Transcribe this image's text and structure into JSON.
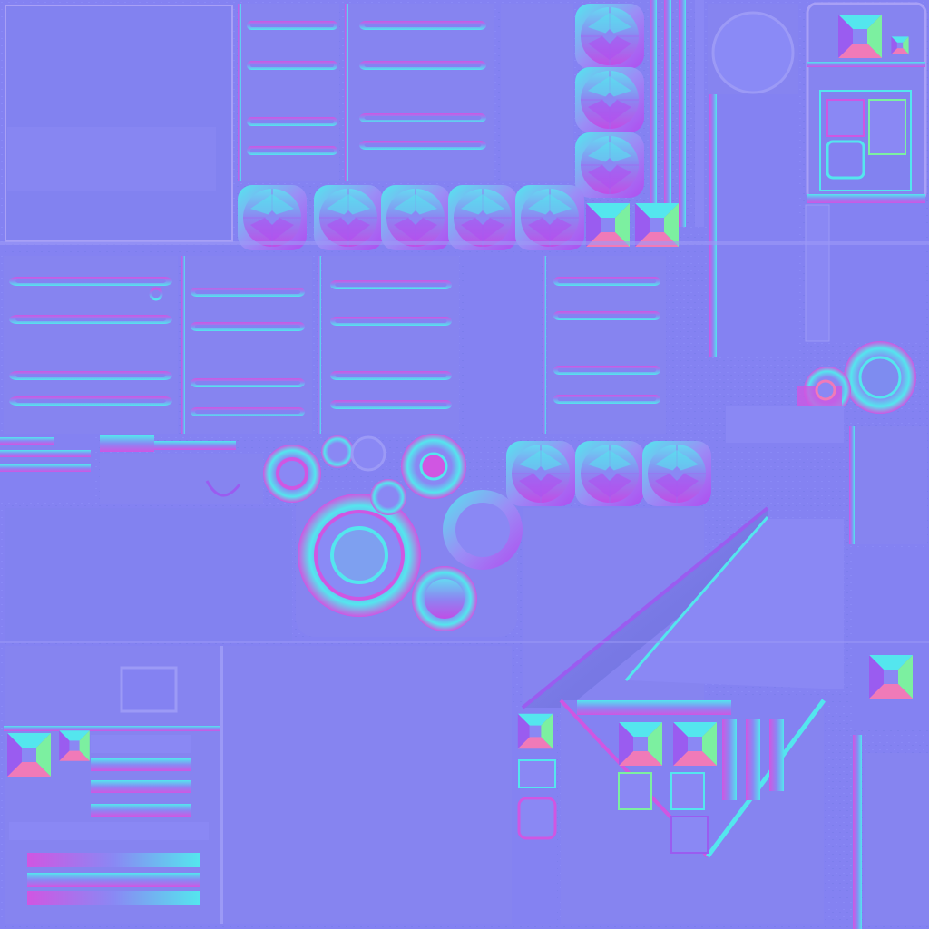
{
  "texture": {
    "kind": "tangent-space normal map",
    "colors": {
      "base": "#7e7ff0",
      "base_light": "#8a88f4",
      "panel": "#8684f0",
      "edge_cyan": "#54e6ee",
      "edge_magenta": "#d056e2",
      "edge_green": "#7cf0a0",
      "edge_pink": "#f07ab8",
      "edge_violet": "#9a5cf0",
      "shadow": "#6a6cd8"
    },
    "icons": [
      "bolt-head-icon",
      "pyramid-stud-icon",
      "slot-groove-icon",
      "rivet-icon",
      "socket-ring-icon"
    ]
  }
}
